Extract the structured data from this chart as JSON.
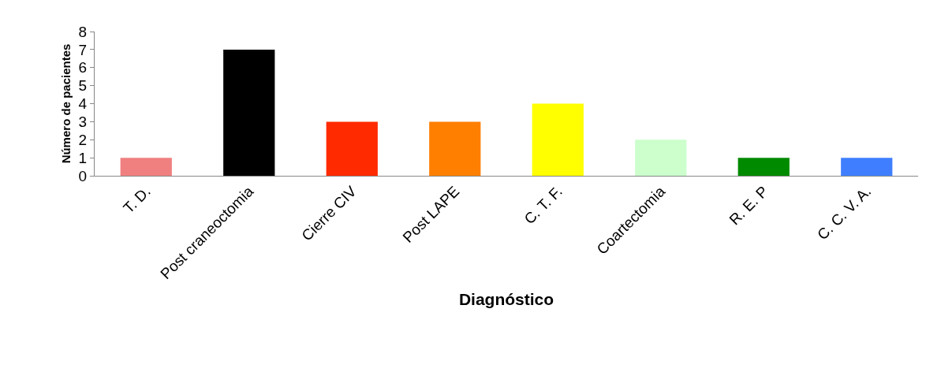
{
  "chart_data": {
    "type": "bar",
    "xlabel": "Diagnóstico",
    "ylabel": "Número de pacientes",
    "categories": [
      "T. D.",
      "Post craneoctomia",
      "Cierre CIV",
      "Post LAPE",
      "C. T. F.",
      "Coartectomia",
      "R. E. P",
      "C. C. V. A."
    ],
    "values": [
      1,
      7,
      3,
      3,
      4,
      2,
      1,
      1
    ],
    "colors": [
      "#f08080",
      "#000000",
      "#ff2a00",
      "#ff7f00",
      "#ffff00",
      "#ccffcc",
      "#008a00",
      "#3f7fff"
    ],
    "ylim": [
      0,
      8
    ],
    "yticks": [
      0,
      1,
      2,
      3,
      4,
      5,
      6,
      7,
      8
    ]
  }
}
